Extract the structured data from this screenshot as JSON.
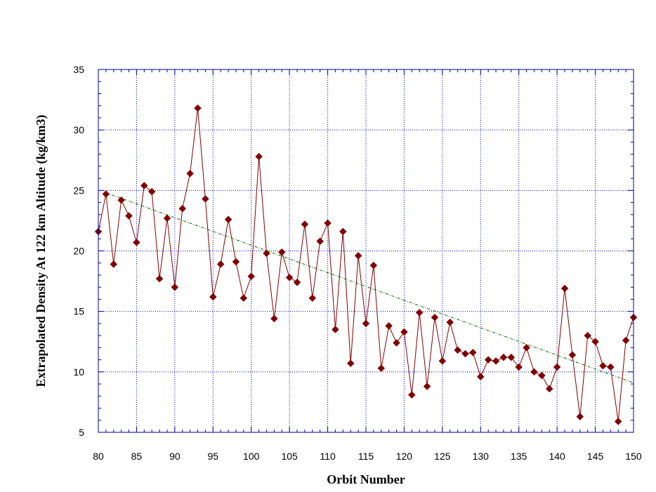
{
  "chart_data": {
    "type": "scatter",
    "title": "",
    "xlabel": "Orbit Number",
    "ylabel": "Extrapolated Density At 122 km Altitude (kg/km3)",
    "xlim": [
      80,
      150
    ],
    "ylim": [
      5,
      35
    ],
    "x_ticks": [
      "80",
      "85",
      "90",
      "95",
      "100",
      "105",
      "110",
      "115",
      "120",
      "125",
      "130",
      "135",
      "140",
      "145",
      "150"
    ],
    "y_ticks": [
      "5",
      "10",
      "15",
      "20",
      "25",
      "30",
      "35"
    ],
    "grid": true,
    "series": [
      {
        "style": "line-with-diamond-markers",
        "color": "#800000",
        "x": [
          80,
          81,
          82,
          83,
          84,
          85,
          86,
          87,
          88,
          89,
          90,
          91,
          92,
          93,
          94,
          95,
          96,
          97,
          98,
          99,
          100,
          101,
          102,
          103,
          104,
          105,
          106,
          107,
          108,
          109,
          110,
          111,
          112,
          113,
          114,
          115,
          116,
          117,
          118,
          119,
          120,
          121,
          122,
          123,
          124,
          125,
          126,
          127,
          128,
          129,
          130,
          131,
          132,
          133,
          134,
          135,
          136,
          137,
          138,
          139,
          140,
          141,
          142,
          143,
          144,
          145,
          146,
          147,
          148,
          149,
          150
        ],
        "y": [
          21.6,
          24.7,
          18.9,
          24.2,
          22.9,
          20.7,
          25.4,
          24.9,
          17.7,
          22.7,
          17.0,
          23.5,
          26.4,
          31.8,
          24.3,
          16.2,
          18.9,
          22.6,
          19.1,
          16.1,
          17.9,
          27.8,
          19.8,
          14.4,
          19.9,
          17.8,
          17.4,
          22.2,
          16.1,
          20.8,
          22.3,
          13.5,
          21.6,
          10.7,
          19.6,
          14.0,
          18.8,
          10.3,
          13.8,
          12.4,
          13.3,
          8.1,
          14.9,
          8.8,
          14.5,
          10.9,
          14.1,
          11.8,
          11.5,
          11.6,
          9.6,
          11.0,
          10.9,
          11.2,
          11.2,
          10.4,
          12.0,
          10.0,
          9.7,
          8.6,
          10.4,
          16.9,
          11.4,
          6.3,
          13.0,
          12.5,
          10.5,
          10.4,
          5.9,
          12.6,
          14.5
        ]
      },
      {
        "style": "trend-line",
        "color": "#006400",
        "x": [
          81,
          150
        ],
        "y": [
          24.8,
          9.1
        ]
      }
    ]
  }
}
